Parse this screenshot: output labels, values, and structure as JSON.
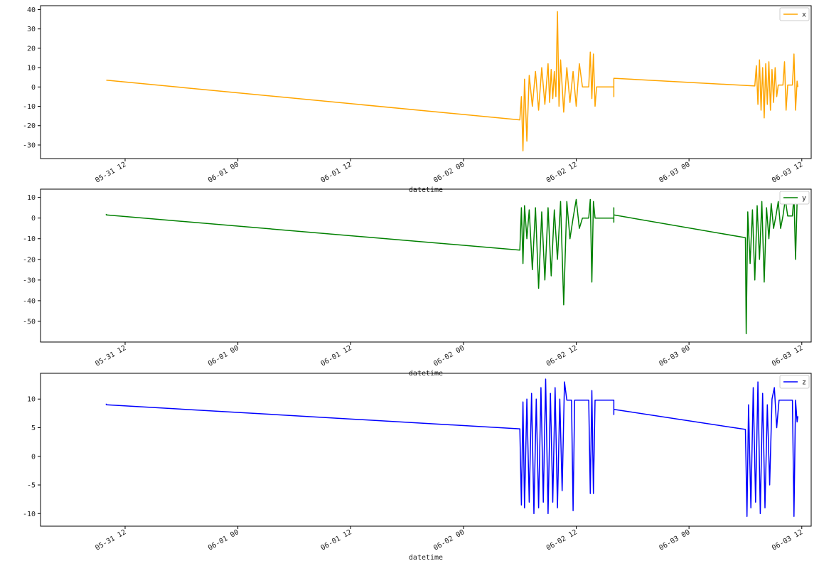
{
  "chart_data": [
    {
      "type": "line",
      "xlabel": "datetime",
      "ylabel": "",
      "legend_placement": "top-right",
      "grid": false,
      "x_range": [
        "2023-05-31 03:00",
        "2023-06-03 13:00"
      ],
      "x_ticks": [
        "2023-05-31 12:00",
        "2023-06-01 00:00",
        "2023-06-01 12:00",
        "2023-06-02 00:00",
        "2023-06-02 12:00",
        "2023-06-03 00:00",
        "2023-06-03 12:00"
      ],
      "x_tick_labels": [
        "05-31 12",
        "06-01 00",
        "06-01 12",
        "06-02 00",
        "06-02 12",
        "06-03 00",
        "06-03 12"
      ],
      "ylim": [
        -37,
        42
      ],
      "y_ticks": [
        -30,
        -20,
        -10,
        0,
        10,
        20,
        30,
        40
      ],
      "series": [
        {
          "name": "x",
          "color": "#ffa500",
          "points": [
            [
              "2023-05-31 10:00",
              3.5
            ],
            [
              "2023-06-02 06:00",
              -17
            ],
            [
              "2023-06-02 06:10",
              -5
            ],
            [
              "2023-06-02 06:20",
              -33
            ],
            [
              "2023-06-02 06:30",
              4
            ],
            [
              "2023-06-02 06:45",
              -28
            ],
            [
              "2023-06-02 07:00",
              6
            ],
            [
              "2023-06-02 07:20",
              -10
            ],
            [
              "2023-06-02 07:40",
              8
            ],
            [
              "2023-06-02 08:00",
              -12
            ],
            [
              "2023-06-02 08:20",
              10
            ],
            [
              "2023-06-02 08:40",
              -9
            ],
            [
              "2023-06-02 09:00",
              12
            ],
            [
              "2023-06-02 09:10",
              -8
            ],
            [
              "2023-06-02 09:20",
              9
            ],
            [
              "2023-06-02 09:30",
              -6
            ],
            [
              "2023-06-02 09:40",
              8
            ],
            [
              "2023-06-02 09:50",
              -5
            ],
            [
              "2023-06-02 10:00",
              39
            ],
            [
              "2023-06-02 10:10",
              -10
            ],
            [
              "2023-06-02 10:20",
              14
            ],
            [
              "2023-06-02 10:40",
              -13
            ],
            [
              "2023-06-02 11:00",
              10
            ],
            [
              "2023-06-02 11:20",
              -8
            ],
            [
              "2023-06-02 11:40",
              8
            ],
            [
              "2023-06-02 12:00",
              -10
            ],
            [
              "2023-06-02 12:20",
              12
            ],
            [
              "2023-06-02 12:40",
              0
            ],
            [
              "2023-06-02 13:20",
              0
            ],
            [
              "2023-06-02 13:30",
              18
            ],
            [
              "2023-06-02 13:40",
              -6
            ],
            [
              "2023-06-02 13:50",
              17
            ],
            [
              "2023-06-02 14:00",
              -10
            ],
            [
              "2023-06-02 14:10",
              0
            ],
            [
              "2023-06-02 16:00",
              0
            ],
            [
              "2023-06-02 16:00",
              -5
            ],
            [
              "2023-06-02 16:00",
              4.5
            ],
            [
              "2023-06-03 07:00",
              0.5
            ],
            [
              "2023-06-03 07:10",
              11
            ],
            [
              "2023-06-03 07:20",
              -9
            ],
            [
              "2023-06-03 07:30",
              14
            ],
            [
              "2023-06-03 07:40",
              -12
            ],
            [
              "2023-06-03 07:50",
              10
            ],
            [
              "2023-06-03 08:00",
              -16
            ],
            [
              "2023-06-03 08:10",
              12
            ],
            [
              "2023-06-03 08:20",
              -9
            ],
            [
              "2023-06-03 08:30",
              13
            ],
            [
              "2023-06-03 08:40",
              -12
            ],
            [
              "2023-06-03 08:50",
              9
            ],
            [
              "2023-06-03 09:00",
              -8
            ],
            [
              "2023-06-03 09:10",
              10
            ],
            [
              "2023-06-03 09:20",
              -5
            ],
            [
              "2023-06-03 09:30",
              1
            ],
            [
              "2023-06-03 10:00",
              1
            ],
            [
              "2023-06-03 10:10",
              13
            ],
            [
              "2023-06-03 10:20",
              -12
            ],
            [
              "2023-06-03 10:30",
              1
            ],
            [
              "2023-06-03 11:00",
              1
            ],
            [
              "2023-06-03 11:10",
              17
            ],
            [
              "2023-06-03 11:20",
              -12
            ],
            [
              "2023-06-03 11:30",
              3
            ],
            [
              "2023-06-03 11:35",
              0
            ]
          ]
        }
      ]
    },
    {
      "type": "line",
      "xlabel": "datetime",
      "ylabel": "",
      "legend_placement": "top-right",
      "grid": false,
      "x_range": [
        "2023-05-31 03:00",
        "2023-06-03 13:00"
      ],
      "x_ticks": [
        "2023-05-31 12:00",
        "2023-06-01 00:00",
        "2023-06-01 12:00",
        "2023-06-02 00:00",
        "2023-06-02 12:00",
        "2023-06-03 00:00",
        "2023-06-03 12:00"
      ],
      "x_tick_labels": [
        "05-31 12",
        "06-01 00",
        "06-01 12",
        "06-02 00",
        "06-02 12",
        "06-03 00",
        "06-03 12"
      ],
      "ylim": [
        -60,
        14
      ],
      "y_ticks": [
        -50,
        -40,
        -30,
        -20,
        -10,
        0,
        10
      ],
      "series": [
        {
          "name": "y",
          "color": "#008000",
          "points": [
            [
              "2023-05-31 10:00",
              2
            ],
            [
              "2023-05-31 10:00",
              1.5
            ],
            [
              "2023-06-02 06:00",
              -15.5
            ],
            [
              "2023-06-02 06:10",
              5
            ],
            [
              "2023-06-02 06:20",
              -22
            ],
            [
              "2023-06-02 06:30",
              6
            ],
            [
              "2023-06-02 06:45",
              -10
            ],
            [
              "2023-06-02 07:00",
              4
            ],
            [
              "2023-06-02 07:20",
              -25
            ],
            [
              "2023-06-02 07:40",
              5
            ],
            [
              "2023-06-02 08:00",
              -34
            ],
            [
              "2023-06-02 08:20",
              3
            ],
            [
              "2023-06-02 08:40",
              -30
            ],
            [
              "2023-06-02 09:00",
              5
            ],
            [
              "2023-06-02 09:20",
              -28
            ],
            [
              "2023-06-02 09:40",
              4
            ],
            [
              "2023-06-02 10:00",
              -20
            ],
            [
              "2023-06-02 10:20",
              8
            ],
            [
              "2023-06-02 10:40",
              -42
            ],
            [
              "2023-06-02 11:00",
              8
            ],
            [
              "2023-06-02 11:20",
              -10
            ],
            [
              "2023-06-02 11:40",
              0
            ],
            [
              "2023-06-02 12:00",
              9
            ],
            [
              "2023-06-02 12:20",
              -5
            ],
            [
              "2023-06-02 12:40",
              0
            ],
            [
              "2023-06-02 13:20",
              0
            ],
            [
              "2023-06-02 13:30",
              9
            ],
            [
              "2023-06-02 13:40",
              -31
            ],
            [
              "2023-06-02 13:50",
              8
            ],
            [
              "2023-06-02 14:00",
              0
            ],
            [
              "2023-06-02 16:00",
              0
            ],
            [
              "2023-06-02 16:00",
              -2
            ],
            [
              "2023-06-02 16:00",
              5
            ],
            [
              "2023-06-02 16:00",
              1.5
            ],
            [
              "2023-06-03 06:00",
              -9.5
            ],
            [
              "2023-06-03 06:05",
              -56
            ],
            [
              "2023-06-03 06:15",
              3
            ],
            [
              "2023-06-03 06:30",
              -22
            ],
            [
              "2023-06-03 06:45",
              4
            ],
            [
              "2023-06-03 07:00",
              -30
            ],
            [
              "2023-06-03 07:15",
              6
            ],
            [
              "2023-06-03 07:30",
              -20
            ],
            [
              "2023-06-03 07:45",
              8
            ],
            [
              "2023-06-03 08:00",
              -31
            ],
            [
              "2023-06-03 08:15",
              5
            ],
            [
              "2023-06-03 08:30",
              -10
            ],
            [
              "2023-06-03 08:45",
              7
            ],
            [
              "2023-06-03 09:00",
              -5
            ],
            [
              "2023-06-03 09:15",
              1
            ],
            [
              "2023-06-03 09:30",
              8
            ],
            [
              "2023-06-03 09:45",
              -5
            ],
            [
              "2023-06-03 10:00",
              1
            ],
            [
              "2023-06-03 10:15",
              9
            ],
            [
              "2023-06-03 10:30",
              1
            ],
            [
              "2023-06-03 11:00",
              1
            ],
            [
              "2023-06-03 11:10",
              11
            ],
            [
              "2023-06-03 11:20",
              -20
            ],
            [
              "2023-06-03 11:30",
              8
            ],
            [
              "2023-06-03 11:35",
              7
            ]
          ]
        }
      ]
    },
    {
      "type": "line",
      "xlabel": "datetime",
      "ylabel": "",
      "legend_placement": "top-right",
      "grid": false,
      "x_range": [
        "2023-05-31 03:00",
        "2023-06-03 13:00"
      ],
      "x_ticks": [
        "2023-05-31 12:00",
        "2023-06-01 00:00",
        "2023-06-01 12:00",
        "2023-06-02 00:00",
        "2023-06-02 12:00",
        "2023-06-03 00:00",
        "2023-06-03 12:00"
      ],
      "x_tick_labels": [
        "05-31 12",
        "06-01 00",
        "06-01 12",
        "06-02 00",
        "06-02 12",
        "06-03 00",
        "06-03 12"
      ],
      "ylim": [
        -12.2,
        14.5
      ],
      "y_ticks": [
        -10,
        -5,
        0,
        5,
        10
      ],
      "series": [
        {
          "name": "z",
          "color": "#0000ff",
          "points": [
            [
              "2023-05-31 10:00",
              9.2
            ],
            [
              "2023-05-31 10:00",
              9.0
            ],
            [
              "2023-06-02 06:00",
              4.8
            ],
            [
              "2023-06-02 06:10",
              -8.5
            ],
            [
              "2023-06-02 06:20",
              9.5
            ],
            [
              "2023-06-02 06:30",
              -9
            ],
            [
              "2023-06-02 06:45",
              10
            ],
            [
              "2023-06-02 07:00",
              -8
            ],
            [
              "2023-06-02 07:15",
              11
            ],
            [
              "2023-06-02 07:30",
              -10
            ],
            [
              "2023-06-02 07:45",
              10
            ],
            [
              "2023-06-02 08:00",
              -9
            ],
            [
              "2023-06-02 08:15",
              12
            ],
            [
              "2023-06-02 08:30",
              -8
            ],
            [
              "2023-06-02 08:45",
              13.5
            ],
            [
              "2023-06-02 09:00",
              -10
            ],
            [
              "2023-06-02 09:15",
              11
            ],
            [
              "2023-06-02 09:30",
              -8
            ],
            [
              "2023-06-02 09:45",
              12
            ],
            [
              "2023-06-02 10:00",
              -9
            ],
            [
              "2023-06-02 10:15",
              10
            ],
            [
              "2023-06-02 10:30",
              -6
            ],
            [
              "2023-06-02 10:45",
              13
            ],
            [
              "2023-06-02 11:00",
              9.8
            ],
            [
              "2023-06-02 11:30",
              9.8
            ],
            [
              "2023-06-02 11:40",
              -9.5
            ],
            [
              "2023-06-02 11:50",
              9.8
            ],
            [
              "2023-06-02 13:20",
              9.8
            ],
            [
              "2023-06-02 13:30",
              -6.5
            ],
            [
              "2023-06-02 13:40",
              11.5
            ],
            [
              "2023-06-02 13:50",
              -6.5
            ],
            [
              "2023-06-02 14:00",
              9.8
            ],
            [
              "2023-06-02 16:00",
              9.8
            ],
            [
              "2023-06-02 16:00",
              7.3
            ],
            [
              "2023-06-02 16:00",
              8.2
            ],
            [
              "2023-06-03 06:00",
              4.7
            ],
            [
              "2023-06-03 06:10",
              -10.5
            ],
            [
              "2023-06-03 06:20",
              9
            ],
            [
              "2023-06-03 06:35",
              -9
            ],
            [
              "2023-06-03 06:50",
              12
            ],
            [
              "2023-06-03 07:05",
              -8
            ],
            [
              "2023-06-03 07:20",
              13
            ],
            [
              "2023-06-03 07:35",
              -10
            ],
            [
              "2023-06-03 07:50",
              11
            ],
            [
              "2023-06-03 08:05",
              -9
            ],
            [
              "2023-06-03 08:20",
              9
            ],
            [
              "2023-06-03 08:35",
              -5
            ],
            [
              "2023-06-03 08:50",
              10
            ],
            [
              "2023-06-03 09:05",
              12
            ],
            [
              "2023-06-03 09:20",
              5
            ],
            [
              "2023-06-03 09:35",
              9.8
            ],
            [
              "2023-06-03 11:00",
              9.8
            ],
            [
              "2023-06-03 11:10",
              -10.5
            ],
            [
              "2023-06-03 11:20",
              9.8
            ],
            [
              "2023-06-03 11:30",
              6
            ],
            [
              "2023-06-03 11:35",
              7
            ]
          ]
        }
      ]
    }
  ]
}
